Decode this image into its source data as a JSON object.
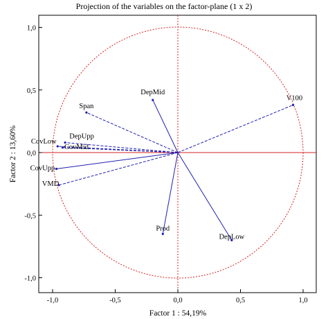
{
  "chart_data": {
    "type": "scatter",
    "title": "Projection of the variables on the factor-plane (1 x 2)",
    "xlabel": "Factor 1 : 54,19%",
    "ylabel": "Factor 2 : 13,60%",
    "xlim": [
      -1.1,
      1.1
    ],
    "ylim": [
      -1.1,
      1.1
    ],
    "x_ticks": [
      "-1,0",
      "-0,5",
      "0,0",
      "0,5",
      "1,0"
    ],
    "y_ticks": [
      "1,0",
      "0,5",
      "0,0",
      "-0,5",
      "-1,0"
    ],
    "grid": false,
    "unit_circle": true,
    "zero_lines": true,
    "colors": {
      "vectors": "#1f1fb4",
      "circle": "#d62020",
      "reference": "#d62020"
    },
    "variables": [
      {
        "name": "DepMid",
        "x": -0.2,
        "y": 0.42,
        "style": "solid"
      },
      {
        "name": "V100",
        "x": 0.92,
        "y": 0.38,
        "style": "dashed"
      },
      {
        "name": "Span",
        "x": -0.73,
        "y": 0.32,
        "style": "dashed"
      },
      {
        "name": "DepUpp",
        "x": -0.9,
        "y": 0.08,
        "style": "dashed"
      },
      {
        "name": "CovLow",
        "x": -0.96,
        "y": 0.05,
        "style": "dashed"
      },
      {
        "name": "CovMid",
        "x": -0.92,
        "y": 0.04,
        "style": "dashed"
      },
      {
        "name": "CovUpp",
        "x": -0.97,
        "y": -0.13,
        "style": "solid"
      },
      {
        "name": "VMD",
        "x": -0.95,
        "y": -0.26,
        "style": "dashed"
      },
      {
        "name": "Prod",
        "x": -0.12,
        "y": -0.65,
        "style": "solid"
      },
      {
        "name": "DepLow",
        "x": 0.43,
        "y": -0.7,
        "style": "solid"
      }
    ]
  }
}
